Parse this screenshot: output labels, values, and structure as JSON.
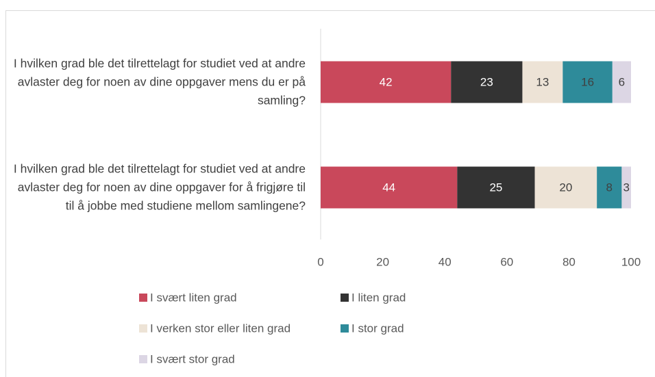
{
  "chart_data": {
    "type": "bar",
    "orientation": "horizontal",
    "stacked": true,
    "categories": [
      "I hvilken grad ble det tilrettelagt for studiet ved at andre avlaster deg for noen av dine oppgaver mens du er på samling?",
      "I hvilken grad ble det tilrettelagt for studiet ved at andre avlaster deg for noen av dine oppgaver for å frigjøre til til å jobbe med studiene mellom samlingene?"
    ],
    "series": [
      {
        "name": "I svært liten grad",
        "color": "#c9485b",
        "values": [
          42,
          44
        ]
      },
      {
        "name": "I liten grad",
        "color": "#333333",
        "values": [
          23,
          25
        ]
      },
      {
        "name": "I verken stor eller liten grad",
        "color": "#ede3d6",
        "values": [
          13,
          20
        ]
      },
      {
        "name": "I stor grad",
        "color": "#2e8b9a",
        "values": [
          16,
          8
        ]
      },
      {
        "name": "I svært stor grad",
        "color": "#dcd6e4",
        "values": [
          6,
          3
        ]
      }
    ],
    "xlim": [
      0,
      100
    ],
    "xticks": [
      0,
      20,
      40,
      60,
      80,
      100
    ],
    "grid": false,
    "legend": "bottom"
  }
}
